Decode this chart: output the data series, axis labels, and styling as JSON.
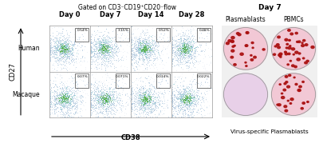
{
  "title_main": "Gated on CD3",
  "title_sup1": "-",
  "title_main2": "CD19",
  "title_sup2": "+",
  "title_main3": "CD20",
  "title_sup3": "-flow",
  "title_full": "Gated on CD3⁻CD19⁺CD20⁻flow",
  "flow_cols": [
    "Day 0",
    "Day 7",
    "Day 14",
    "Day 28"
  ],
  "flow_rows": [
    "Human",
    "Macaque"
  ],
  "human_percentages": [
    "0.54%",
    "3.15%",
    "0.52%",
    "0.48%"
  ],
  "macaque_percentages": [
    "0.07%",
    "0.071%",
    "0.034%",
    "0.022%"
  ],
  "ylabel": "CD27",
  "xlabel": "CD38",
  "right_title": "Day 7",
  "right_col1": "Plasmablasts",
  "right_col2": "PBMCs",
  "bottom_label": "Virus-specific Plasmablasts",
  "bg_color": "#ffffff",
  "dot_blue": "#a0bcd8",
  "dot_green": "#44aa33",
  "dot_cyan": "#88cccc",
  "plate_pink": "#f2c8d5",
  "plate_lavender": "#e8d0e8",
  "spot_color": "#aa1111"
}
